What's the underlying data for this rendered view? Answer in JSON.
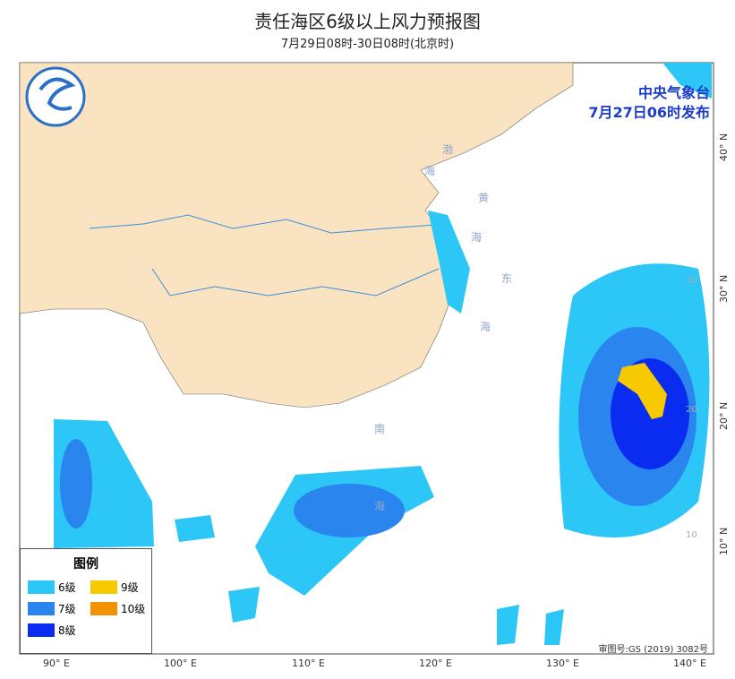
{
  "header": {
    "title": "责任海区6级以上风力预报图",
    "subtitle": "7月29日08时-30日08时(北京时)"
  },
  "issuer": {
    "name": "中央气象台",
    "time": "7月27日06时发布"
  },
  "legend": {
    "title": "图例",
    "items": [
      {
        "label": "6级",
        "color": "#2cc6f7"
      },
      {
        "label": "9级",
        "color": "#f7c900"
      },
      {
        "label": "7级",
        "color": "#2a86ee"
      },
      {
        "label": "10级",
        "color": "#f39200"
      },
      {
        "label": "8级",
        "color": "#0a2cf0"
      }
    ]
  },
  "map": {
    "lon_labels": [
      "90° E",
      "100° E",
      "110° E",
      "120° E",
      "130° E",
      "140° E"
    ],
    "lat_labels": [
      "40° N",
      "30° N",
      "20° N",
      "10° N"
    ],
    "inner_lat_labels": [
      "30",
      "20",
      "10"
    ],
    "sea_labels": [
      "渤",
      "海",
      "黄",
      "海",
      "东",
      "海",
      "南",
      "海"
    ]
  },
  "footer": {
    "review_no": "审图号:GS (2019) 3082号"
  }
}
